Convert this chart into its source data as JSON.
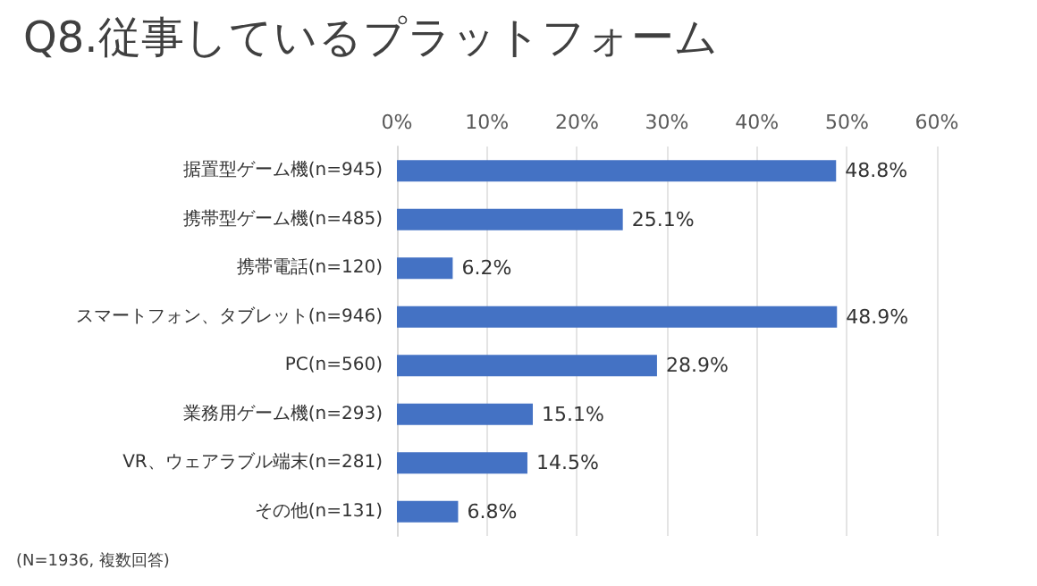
{
  "chart_data": {
    "type": "bar",
    "orientation": "horizontal",
    "title": "Q8.従事しているプラットフォーム",
    "categories": [
      "据置型ゲーム機(n=945)",
      "携帯型ゲーム機(n=485)",
      "携帯電話(n=120)",
      "スマートフォン、タブレット(n=946)",
      "PC(n=560)",
      "業務用ゲーム機(n=293)",
      "VR、ウェアラブル端末(n=281)",
      "その他(n=131)"
    ],
    "values": [
      48.8,
      25.1,
      6.2,
      48.9,
      28.9,
      15.1,
      14.5,
      6.8
    ],
    "value_labels": [
      "48.8%",
      "25.1%",
      "6.2%",
      "48.9%",
      "28.9%",
      "15.1%",
      "14.5%",
      "6.8%"
    ],
    "color": "#4472c4",
    "xlim": [
      0,
      60
    ],
    "xticks": [
      {
        "value": 0,
        "label": "0%"
      },
      {
        "value": 10,
        "label": "10%"
      },
      {
        "value": 20,
        "label": "20%"
      },
      {
        "value": 30,
        "label": "30%"
      },
      {
        "value": 40,
        "label": "40%"
      },
      {
        "value": 50,
        "label": "50%"
      },
      {
        "value": 60,
        "label": "60%"
      }
    ],
    "grid": "x",
    "annotations": [
      "(N=1936, 複数回答)"
    ]
  }
}
